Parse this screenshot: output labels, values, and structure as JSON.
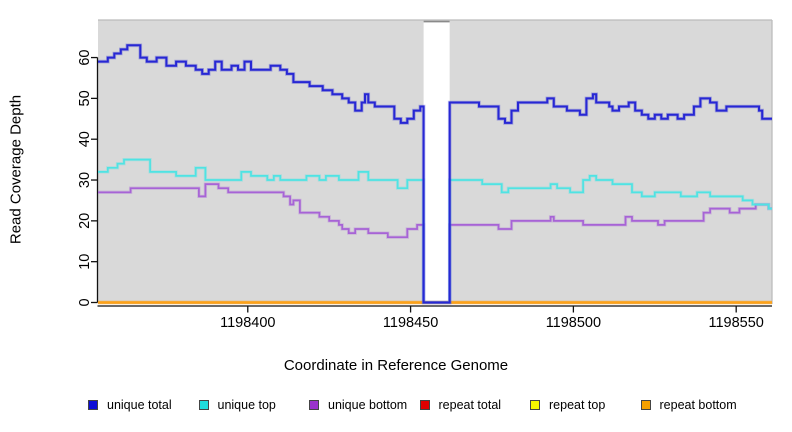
{
  "chart_data": {
    "type": "line",
    "subtype": "step",
    "title": "",
    "xlabel": "Coordinate in Reference Genome",
    "ylabel": "Read Coverage Depth",
    "xlim": [
      1198354,
      1198561
    ],
    "ylim": [
      0,
      69.2
    ],
    "x_ticks": [
      1198400,
      1198450,
      1198500,
      1198550
    ],
    "y_ticks": [
      0,
      10,
      20,
      30,
      40,
      50,
      60
    ],
    "plot_bg_color": "#d9d9d9",
    "plot_border_color": "#bcbcbc",
    "gap_region": {
      "start": 1198454,
      "end": 1198462,
      "fill": "#ffffff",
      "border": "#8a8a8a"
    },
    "grid": false,
    "legend_position": "bottom",
    "series": [
      {
        "name": "unique total",
        "color": "#2727d4",
        "points": [
          [
            1198354,
            59
          ],
          [
            1198357,
            60
          ],
          [
            1198359,
            61
          ],
          [
            1198361,
            62
          ],
          [
            1198363,
            63
          ],
          [
            1198367,
            60
          ],
          [
            1198369,
            59
          ],
          [
            1198372,
            60
          ],
          [
            1198375,
            58
          ],
          [
            1198378,
            59
          ],
          [
            1198381,
            58
          ],
          [
            1198384,
            57
          ],
          [
            1198386,
            56
          ],
          [
            1198388,
            57
          ],
          [
            1198390,
            59
          ],
          [
            1198392,
            57
          ],
          [
            1198395,
            58
          ],
          [
            1198397,
            57
          ],
          [
            1198399,
            59
          ],
          [
            1198401,
            57
          ],
          [
            1198404,
            57
          ],
          [
            1198407,
            58
          ],
          [
            1198410,
            57
          ],
          [
            1198412,
            56
          ],
          [
            1198414,
            54
          ],
          [
            1198417,
            54
          ],
          [
            1198419,
            53
          ],
          [
            1198423,
            52
          ],
          [
            1198426,
            51
          ],
          [
            1198429,
            50
          ],
          [
            1198431,
            49
          ],
          [
            1198433,
            47
          ],
          [
            1198435,
            49
          ],
          [
            1198436,
            51
          ],
          [
            1198437,
            49
          ],
          [
            1198439,
            48
          ],
          [
            1198445,
            45
          ],
          [
            1198447,
            44
          ],
          [
            1198449,
            45
          ],
          [
            1198451,
            47
          ],
          [
            1198453,
            48
          ],
          [
            1198454,
            0
          ],
          [
            1198462,
            49
          ],
          [
            1198471,
            48
          ],
          [
            1198477,
            45
          ],
          [
            1198479,
            44
          ],
          [
            1198481,
            47
          ],
          [
            1198483,
            49
          ],
          [
            1198492,
            50
          ],
          [
            1198494,
            48
          ],
          [
            1198498,
            47
          ],
          [
            1198502,
            46
          ],
          [
            1198504,
            50
          ],
          [
            1198506,
            51
          ],
          [
            1198507,
            49
          ],
          [
            1198511,
            48
          ],
          [
            1198512,
            47
          ],
          [
            1198514,
            48
          ],
          [
            1198517,
            49
          ],
          [
            1198519,
            47
          ],
          [
            1198521,
            46
          ],
          [
            1198523,
            45
          ],
          [
            1198525,
            46
          ],
          [
            1198527,
            45
          ],
          [
            1198529,
            46
          ],
          [
            1198532,
            45
          ],
          [
            1198534,
            46
          ],
          [
            1198537,
            48
          ],
          [
            1198539,
            50
          ],
          [
            1198542,
            49
          ],
          [
            1198544,
            47
          ],
          [
            1198547,
            48
          ],
          [
            1198557,
            47
          ],
          [
            1198558,
            45
          ],
          [
            1198561,
            45
          ]
        ]
      },
      {
        "name": "unique top",
        "color": "#4fe3e3",
        "points": [
          [
            1198354,
            32
          ],
          [
            1198357,
            33
          ],
          [
            1198360,
            34
          ],
          [
            1198362,
            35
          ],
          [
            1198370,
            32
          ],
          [
            1198376,
            32
          ],
          [
            1198378,
            31
          ],
          [
            1198384,
            33
          ],
          [
            1198387,
            30
          ],
          [
            1198398,
            32
          ],
          [
            1198401,
            31
          ],
          [
            1198406,
            30
          ],
          [
            1198408,
            31
          ],
          [
            1198410,
            30
          ],
          [
            1198418,
            31
          ],
          [
            1198422,
            30
          ],
          [
            1198424,
            31
          ],
          [
            1198428,
            30
          ],
          [
            1198434,
            32
          ],
          [
            1198437,
            30
          ],
          [
            1198446,
            28
          ],
          [
            1198449,
            30
          ],
          [
            1198454,
            0
          ],
          [
            1198462,
            30
          ],
          [
            1198472,
            29
          ],
          [
            1198478,
            27
          ],
          [
            1198480,
            28
          ],
          [
            1198493,
            29
          ],
          [
            1198495,
            28
          ],
          [
            1198499,
            27
          ],
          [
            1198503,
            30
          ],
          [
            1198505,
            31
          ],
          [
            1198507,
            30
          ],
          [
            1198512,
            29
          ],
          [
            1198518,
            27
          ],
          [
            1198521,
            26
          ],
          [
            1198525,
            27
          ],
          [
            1198533,
            26
          ],
          [
            1198538,
            27
          ],
          [
            1198542,
            26
          ],
          [
            1198552,
            25
          ],
          [
            1198555,
            24
          ],
          [
            1198560,
            23
          ],
          [
            1198561,
            23
          ]
        ]
      },
      {
        "name": "unique bottom",
        "color": "#a763d6",
        "points": [
          [
            1198354,
            27
          ],
          [
            1198364,
            28
          ],
          [
            1198385,
            26
          ],
          [
            1198387,
            29
          ],
          [
            1198391,
            28
          ],
          [
            1198394,
            27
          ],
          [
            1198411,
            26
          ],
          [
            1198413,
            24
          ],
          [
            1198414,
            25
          ],
          [
            1198416,
            22
          ],
          [
            1198422,
            21
          ],
          [
            1198425,
            20
          ],
          [
            1198428,
            19
          ],
          [
            1198429,
            18
          ],
          [
            1198431,
            17
          ],
          [
            1198433,
            18
          ],
          [
            1198437,
            17
          ],
          [
            1198443,
            16
          ],
          [
            1198449,
            18
          ],
          [
            1198452,
            19
          ],
          [
            1198454,
            0
          ],
          [
            1198462,
            19
          ],
          [
            1198477,
            18
          ],
          [
            1198481,
            20
          ],
          [
            1198493,
            21
          ],
          [
            1198494,
            20
          ],
          [
            1198503,
            19
          ],
          [
            1198516,
            21
          ],
          [
            1198518,
            20
          ],
          [
            1198526,
            19
          ],
          [
            1198528,
            20
          ],
          [
            1198540,
            22
          ],
          [
            1198542,
            23
          ],
          [
            1198548,
            22
          ],
          [
            1198551,
            23
          ],
          [
            1198556,
            24
          ],
          [
            1198560,
            23
          ],
          [
            1198561,
            23
          ]
        ]
      },
      {
        "name": "repeat total",
        "color": "#e00000",
        "points": [
          [
            1198354,
            0
          ],
          [
            1198561,
            0
          ]
        ]
      },
      {
        "name": "repeat top",
        "color": "#f5f500",
        "points": [
          [
            1198354,
            0
          ],
          [
            1198561,
            0
          ]
        ]
      },
      {
        "name": "repeat bottom",
        "color": "#ffa217",
        "points": [
          [
            1198354,
            0
          ],
          [
            1198561,
            0
          ]
        ]
      }
    ]
  },
  "legend": {
    "items": [
      {
        "label": "unique total",
        "color": "#0d0dd6"
      },
      {
        "label": "unique top",
        "color": "#1fdddd"
      },
      {
        "label": "unique bottom",
        "color": "#9a32cc"
      },
      {
        "label": "repeat total",
        "color": "#e00000"
      },
      {
        "label": "repeat top",
        "color": "#f5f500"
      },
      {
        "label": "repeat bottom",
        "color": "#f5a000"
      }
    ]
  }
}
